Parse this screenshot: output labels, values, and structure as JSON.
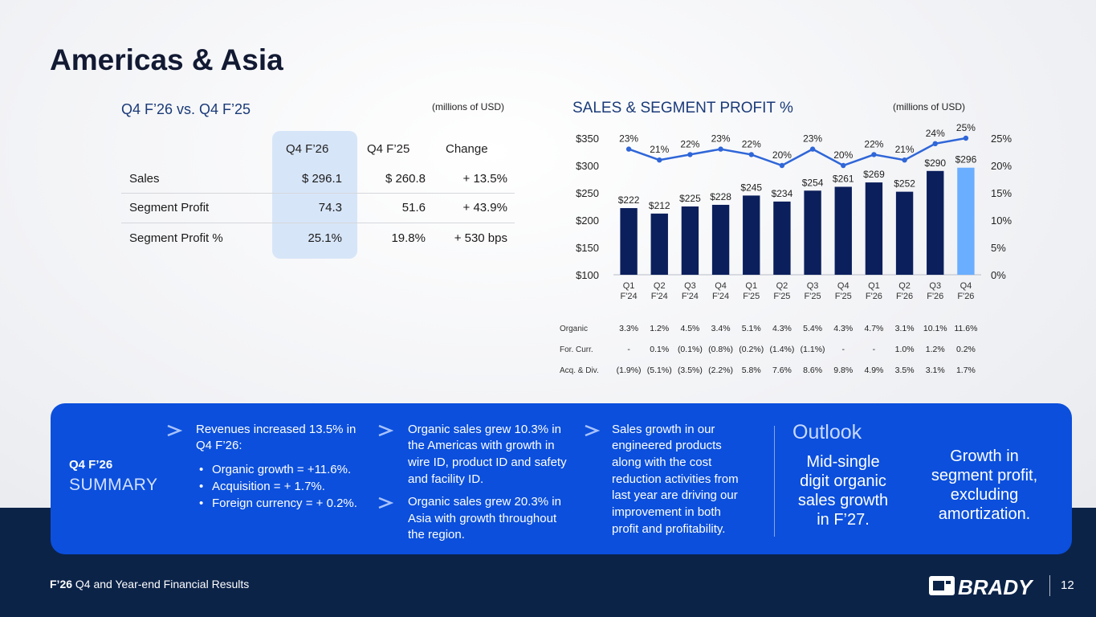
{
  "title": "Americas & Asia",
  "table": {
    "heading": "Q4 F’26 vs. Q4 F’25",
    "units": "(millions of USD)",
    "columns": [
      "Q4 F’26",
      "Q4 F’25",
      "Change"
    ],
    "rows": [
      {
        "label": "Sales",
        "q4f26": "$ 296.1",
        "q4f25": "$ 260.8",
        "change": "+ 13.5%"
      },
      {
        "label": "Segment Profit",
        "q4f26": "74.3",
        "q4f25": "51.6",
        "change": "+ 43.9%"
      },
      {
        "label": "Segment Profit %",
        "q4f26": "25.1%",
        "q4f25": "19.8%",
        "change": "+ 530 bps"
      }
    ]
  },
  "chart_heading": "SALES & SEGMENT PROFIT %",
  "chart_units": "(millions of USD)",
  "chart_data": {
    "type": "bar",
    "title": "SALES & SEGMENT PROFIT %",
    "categories": [
      "Q1 F'24",
      "Q2 F'24",
      "Q3 F'24",
      "Q4 F'24",
      "Q1 F'25",
      "Q2 F'25",
      "Q3 F'25",
      "Q4 F'25",
      "Q1 F'26",
      "Q2 F'26",
      "Q3 F'26",
      "Q4 F'26"
    ],
    "category_lines": [
      [
        "Q1",
        "F'24"
      ],
      [
        "Q2",
        "F'24"
      ],
      [
        "Q3",
        "F'24"
      ],
      [
        "Q4",
        "F'24"
      ],
      [
        "Q1",
        "F'25"
      ],
      [
        "Q2",
        "F'25"
      ],
      [
        "Q3",
        "F'25"
      ],
      [
        "Q4",
        "F'25"
      ],
      [
        "Q1",
        "F'26"
      ],
      [
        "Q2",
        "F'26"
      ],
      [
        "Q3",
        "F'26"
      ],
      [
        "Q4",
        "F'26"
      ]
    ],
    "series": [
      {
        "type": "bar",
        "axis": "left",
        "values": [
          222,
          212,
          225,
          228,
          245,
          234,
          254,
          261,
          269,
          252,
          290,
          296
        ],
        "labels": [
          "$222",
          "$212",
          "$225",
          "$228",
          "$245",
          "$234",
          "$254",
          "$261",
          "$269",
          "$252",
          "$290",
          "$296"
        ],
        "color": "#0b1f5c",
        "highlight_color": "#6aaeff"
      },
      {
        "type": "line",
        "axis": "right",
        "values": [
          23,
          21,
          22,
          23,
          22,
          20,
          23,
          20,
          22,
          21,
          24,
          25
        ],
        "labels": [
          "23%",
          "21%",
          "22%",
          "23%",
          "22%",
          "20%",
          "23%",
          "20%",
          "22%",
          "21%",
          "24%",
          "25%"
        ],
        "color": "#2f66d8"
      }
    ],
    "y_left": {
      "min": 100,
      "max": 350,
      "ticks": [
        "$100",
        "$150",
        "$200",
        "$250",
        "$300",
        "$350"
      ],
      "tick_values": [
        100,
        150,
        200,
        250,
        300,
        350
      ]
    },
    "y_right": {
      "min": 0,
      "max": 25,
      "ticks": [
        "0%",
        "5%",
        "10%",
        "15%",
        "20%",
        "25%"
      ],
      "tick_values": [
        0,
        5,
        10,
        15,
        20,
        25
      ]
    },
    "grid": false
  },
  "sales_mix": {
    "rows": [
      {
        "label": "Organic",
        "values": [
          "3.3%",
          "1.2%",
          "4.5%",
          "3.4%",
          "5.1%",
          "4.3%",
          "5.4%",
          "4.3%",
          "4.7%",
          "3.1%",
          "10.1%",
          "11.6%"
        ]
      },
      {
        "label": "For. Curr.",
        "values": [
          "-",
          "0.1%",
          "(0.1%)",
          "(0.8%)",
          "(0.2%)",
          "(1.4%)",
          "(1.1%)",
          "-",
          "-",
          "1.0%",
          "1.2%",
          "0.2%"
        ]
      },
      {
        "label": "Acq. & Div.",
        "values": [
          "(1.9%)",
          "(5.1%)",
          "(3.5%)",
          "(2.2%)",
          "5.8%",
          "7.6%",
          "8.6%",
          "9.8%",
          "4.9%",
          "3.5%",
          "3.1%",
          "1.7%"
        ]
      }
    ]
  },
  "summary": {
    "label_top": "Q4 F’26",
    "label_bottom": "SUMMARY",
    "col1": {
      "lead_1": "Revenues increased 13.5% in",
      "lead_2": "Q4 F’26:",
      "bullets": [
        "Organic growth = +11.6%.",
        "Acquisition = + 1.7%.",
        "Foreign currency = + 0.2%."
      ]
    },
    "col2": {
      "p1": [
        "Organic sales grew 10.3% in",
        "the Americas with growth in",
        "wire ID, product ID and safety",
        "and facility ID."
      ],
      "p2": [
        "Organic sales grew 20.3% in",
        "Asia with growth throughout",
        "the region."
      ]
    },
    "col3": {
      "p1": [
        "Sales growth in our",
        "engineered products",
        "along with the cost",
        "reduction activities from",
        "last year are driving our",
        "improvement in both",
        "profit and profitability."
      ]
    },
    "outlook": {
      "heading": "Outlook",
      "item1": [
        "Mid-single",
        "digit organic",
        "sales growth",
        "in F’27."
      ],
      "item2": [
        "Growth in",
        "segment profit,",
        "excluding",
        "amortization."
      ]
    }
  },
  "footer": {
    "bold": "F’26",
    "text": " Q4 and Year-end Financial Results",
    "brand": "BRADY",
    "page_number": "12"
  },
  "colors": {
    "panel": "#0b4fdc",
    "footer_bg": "#0c2348",
    "bar": "#0b1f5c",
    "bar_highlight": "#6aaeff",
    "line": "#2f66d8",
    "table_highlight": "#d7e5f8"
  }
}
